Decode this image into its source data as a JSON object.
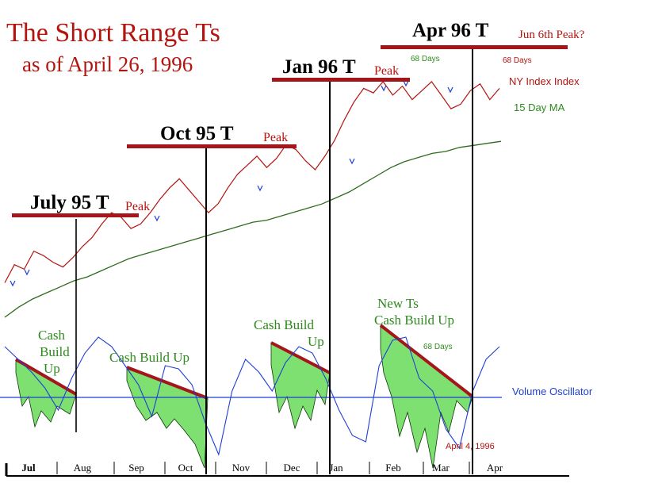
{
  "title": "The Short Range Ts",
  "subtitle": "as of April 26, 1996",
  "t_markers": [
    {
      "label": "July 95  T",
      "note": "Peak"
    },
    {
      "label": "Oct 95  T",
      "note": "Peak"
    },
    {
      "label": "Jan 96  T",
      "note": "Peak"
    },
    {
      "label": "Apr 96  T",
      "note": "Jun 6th Peak?"
    }
  ],
  "annotations": {
    "days1": "68 Days",
    "days2": "68 Days",
    "days3": "68 Days",
    "cash1": [
      "Cash",
      "Build",
      "Up"
    ],
    "cash2": "Cash Build Up",
    "cash3": [
      "Cash Build",
      "Up"
    ],
    "cash4": [
      "New Ts",
      "Cash Build Up"
    ],
    "apr4": "April 4, 1996"
  },
  "colors": {
    "index": "#b3140f",
    "ma": "#2e6b1e",
    "osc": "#1f3fd6",
    "fill": "#7ee070",
    "tbar": "#a4161a"
  },
  "chart_data": {
    "type": "line",
    "months": [
      "Jul",
      "Aug",
      "Sep",
      "Oct",
      "Nov",
      "Dec",
      "Jan",
      "Feb",
      "Mar",
      "Apr"
    ],
    "series": [
      {
        "name": "NY Index Index",
        "values": [
          0.1,
          0.18,
          0.16,
          0.24,
          0.22,
          0.19,
          0.17,
          0.21,
          0.26,
          0.3,
          0.36,
          0.41,
          0.39,
          0.34,
          0.36,
          0.41,
          0.47,
          0.52,
          0.56,
          0.51,
          0.46,
          0.41,
          0.45,
          0.52,
          0.58,
          0.62,
          0.66,
          0.61,
          0.65,
          0.71,
          0.69,
          0.64,
          0.6,
          0.66,
          0.73,
          0.82,
          0.9,
          0.96,
          0.94,
          0.99,
          0.93,
          0.97,
          0.91,
          0.95,
          0.99,
          0.93,
          0.87,
          0.89,
          0.95,
          0.98,
          0.91,
          0.96
        ]
      },
      {
        "name": "15 Day MA",
        "values": [
          0.0,
          0.05,
          0.09,
          0.12,
          0.15,
          0.18,
          0.2,
          0.23,
          0.26,
          0.29,
          0.31,
          0.33,
          0.35,
          0.37,
          0.39,
          0.41,
          0.43,
          0.45,
          0.47,
          0.48,
          0.5,
          0.52,
          0.54,
          0.56,
          0.59,
          0.62,
          0.66,
          0.7,
          0.74,
          0.77,
          0.79,
          0.81,
          0.82,
          0.84,
          0.85,
          0.86,
          0.87
        ]
      },
      {
        "name": "Volume Oscillator",
        "values": [
          0.8,
          0.6,
          0.4,
          0.15,
          -0.2,
          0.3,
          0.7,
          0.95,
          0.8,
          0.5,
          0.2,
          -0.3,
          0.5,
          0.45,
          0.2,
          -0.4,
          -0.9,
          0.1,
          0.6,
          0.4,
          0.1,
          0.55,
          0.8,
          0.7,
          0.3,
          -0.2,
          -0.6,
          -0.7,
          0.5,
          0.9,
          0.95,
          0.3,
          0.1,
          -0.5,
          -0.8,
          0.1,
          0.6,
          0.8
        ]
      }
    ]
  }
}
